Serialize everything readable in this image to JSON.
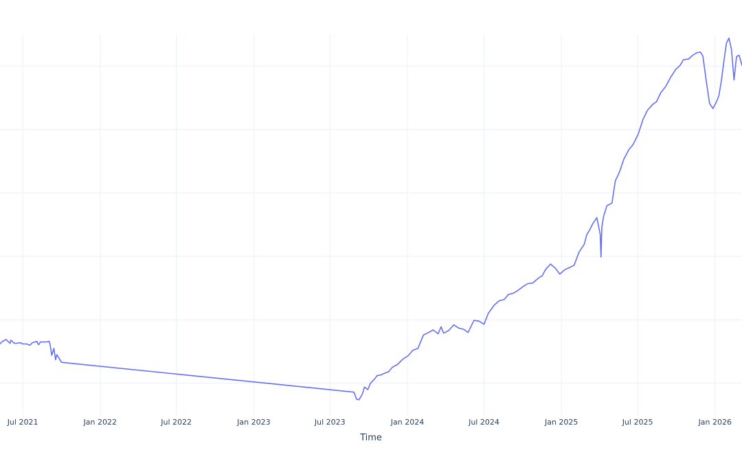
{
  "chart_data": {
    "type": "line",
    "title": "",
    "xlabel": "Time",
    "ylabel": "",
    "grid": true,
    "legend": "none",
    "color": "#636efa",
    "xlim": [
      "2021-05-08",
      "2026-03-06"
    ],
    "ylim": [
      0,
      6
    ],
    "y_gridlines": [
      0.5,
      1.5,
      2.5,
      3.5,
      4.5,
      5.5
    ],
    "x_ticks": [
      {
        "date": "2021-07-01",
        "label": "Jul 2021"
      },
      {
        "date": "2022-01-01",
        "label": "Jan 2022"
      },
      {
        "date": "2022-07-01",
        "label": "Jul 2022"
      },
      {
        "date": "2023-01-01",
        "label": "Jan 2023"
      },
      {
        "date": "2023-07-01",
        "label": "Jul 2023"
      },
      {
        "date": "2024-01-01",
        "label": "Jan 2024"
      },
      {
        "date": "2024-07-01",
        "label": "Jul 2024"
      },
      {
        "date": "2025-01-01",
        "label": "Jan 2025"
      },
      {
        "date": "2025-07-01",
        "label": "Jul 2025"
      },
      {
        "date": "2026-01-01",
        "label": "Jan 2026"
      }
    ],
    "series": [
      {
        "name": "",
        "x": [
          "2021-05-08",
          "2021-05-12",
          "2021-05-22",
          "2021-06-01",
          "2021-06-03",
          "2021-06-09",
          "2021-06-12",
          "2021-06-16",
          "2021-06-25",
          "2021-07-01",
          "2021-07-10",
          "2021-07-18",
          "2021-07-24",
          "2021-08-04",
          "2021-08-06",
          "2021-08-08",
          "2021-08-12",
          "2021-08-25",
          "2021-09-02",
          "2021-09-04",
          "2021-09-08",
          "2021-09-13",
          "2021-09-17",
          "2021-09-20",
          "2021-09-25",
          "2021-10-01",
          "2023-08-27",
          "2023-09-02",
          "2023-09-08",
          "2023-09-16",
          "2023-09-21",
          "2023-09-29",
          "2023-10-05",
          "2023-10-14",
          "2023-10-21",
          "2023-10-30",
          "2023-11-08",
          "2023-11-17",
          "2023-11-26",
          "2023-12-09",
          "2023-12-21",
          "2024-01-02",
          "2024-01-14",
          "2024-01-26",
          "2024-02-08",
          "2024-02-20",
          "2024-03-02",
          "2024-03-14",
          "2024-03-21",
          "2024-03-27",
          "2024-04-08",
          "2024-04-20",
          "2024-05-02",
          "2024-05-14",
          "2024-05-24",
          "2024-06-07",
          "2024-06-19",
          "2024-07-01",
          "2024-07-11",
          "2024-07-25",
          "2024-08-06",
          "2024-08-18",
          "2024-08-28",
          "2024-09-09",
          "2024-09-21",
          "2024-10-01",
          "2024-10-13",
          "2024-10-25",
          "2024-11-06",
          "2024-11-12",
          "2024-11-16",
          "2024-11-24",
          "2024-12-06",
          "2024-12-18",
          "2024-12-28",
          "2025-01-09",
          "2025-01-19",
          "2025-01-31",
          "2025-02-12",
          "2025-02-24",
          "2025-03-02",
          "2025-03-10",
          "2025-03-16",
          "2025-03-26",
          "2025-04-03",
          "2025-04-05",
          "2025-04-07",
          "2025-04-11",
          "2025-04-19",
          "2025-05-01",
          "2025-05-09",
          "2025-05-19",
          "2025-05-29",
          "2025-06-10",
          "2025-06-20",
          "2025-07-02",
          "2025-07-14",
          "2025-07-24",
          "2025-08-05",
          "2025-08-15",
          "2025-08-25",
          "2025-09-06",
          "2025-09-18",
          "2025-09-30",
          "2025-10-10",
          "2025-10-18",
          "2025-10-30",
          "2025-11-09",
          "2025-11-19",
          "2025-11-27",
          "2025-12-03",
          "2025-12-11",
          "2025-12-19",
          "2025-12-27",
          "2026-01-04",
          "2026-01-10",
          "2026-01-16",
          "2026-01-22",
          "2026-01-28",
          "2026-02-03",
          "2026-02-09",
          "2026-02-15",
          "2026-02-21",
          "2026-02-27",
          "2026-03-06"
        ],
        "values": [
          1.12,
          1.15,
          1.19,
          1.13,
          1.18,
          1.14,
          1.13,
          1.13,
          1.14,
          1.12,
          1.12,
          1.1,
          1.14,
          1.16,
          1.12,
          1.11,
          1.15,
          1.15,
          1.16,
          1.11,
          0.94,
          1.05,
          0.87,
          0.95,
          0.9,
          0.83,
          0.36,
          0.25,
          0.24,
          0.33,
          0.44,
          0.4,
          0.5,
          0.56,
          0.62,
          0.63,
          0.66,
          0.68,
          0.75,
          0.8,
          0.88,
          0.93,
          1.02,
          1.05,
          1.26,
          1.3,
          1.34,
          1.28,
          1.39,
          1.29,
          1.33,
          1.42,
          1.37,
          1.35,
          1.3,
          1.49,
          1.48,
          1.43,
          1.6,
          1.73,
          1.8,
          1.82,
          1.9,
          1.92,
          1.97,
          2.02,
          2.07,
          2.08,
          2.15,
          2.18,
          2.19,
          2.29,
          2.38,
          2.31,
          2.22,
          2.29,
          2.32,
          2.36,
          2.57,
          2.69,
          2.84,
          2.93,
          3.01,
          3.11,
          2.85,
          2.49,
          2.96,
          3.13,
          3.3,
          3.34,
          3.69,
          3.83,
          4.03,
          4.18,
          4.26,
          4.42,
          4.66,
          4.8,
          4.89,
          4.94,
          5.08,
          5.18,
          5.33,
          5.45,
          5.51,
          5.6,
          5.61,
          5.67,
          5.71,
          5.72,
          5.66,
          5.27,
          4.91,
          4.83,
          4.93,
          5.03,
          5.27,
          5.58,
          5.86,
          5.94,
          5.76,
          5.28,
          5.65,
          5.67,
          5.51
        ]
      }
    ]
  }
}
